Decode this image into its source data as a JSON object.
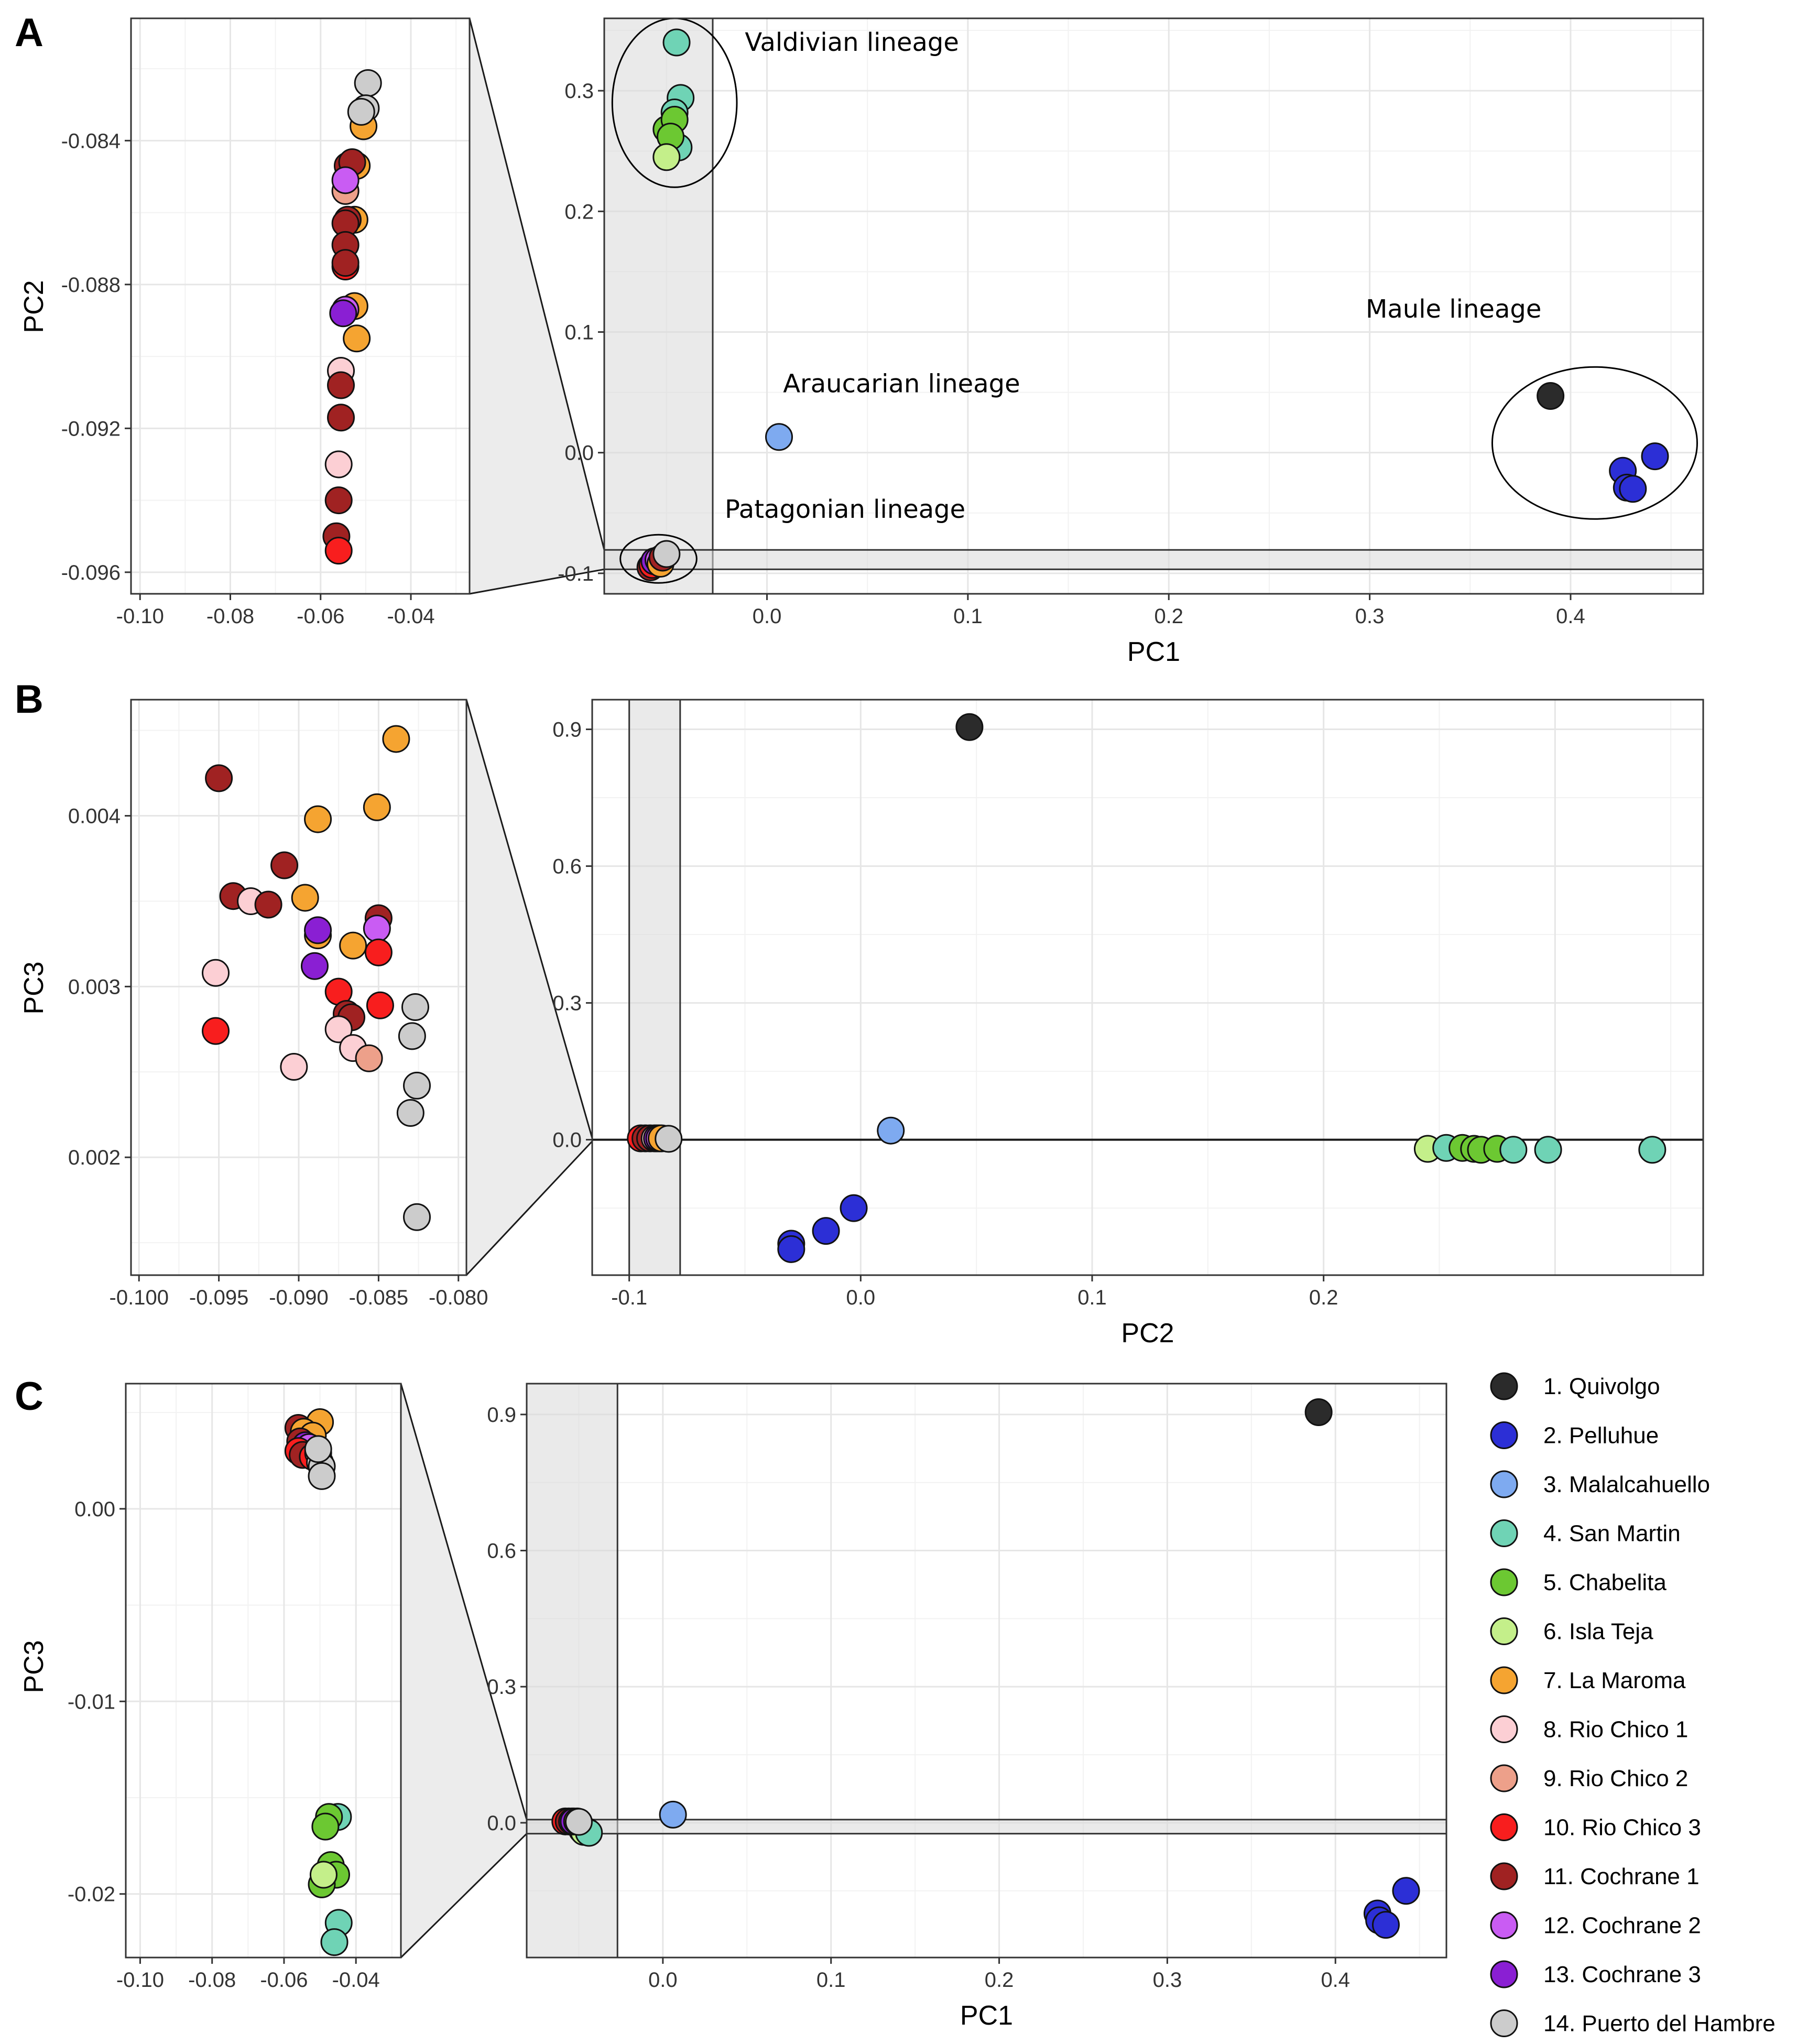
{
  "panel_letters": [
    "A",
    "B",
    "C"
  ],
  "legend": {
    "items": [
      {
        "id": 1,
        "label": "1. Quivolgo",
        "color": "#2b2b2b"
      },
      {
        "id": 2,
        "label": "2. Pelluhue",
        "color": "#2c2fd6"
      },
      {
        "id": 3,
        "label": "3. Malalcahuello",
        "color": "#7eaaf0"
      },
      {
        "id": 4,
        "label": "4. San Martin",
        "color": "#6fd3b5"
      },
      {
        "id": 5,
        "label": "5. Chabelita",
        "color": "#6cc832"
      },
      {
        "id": 6,
        "label": "6. Isla Teja",
        "color": "#c4ef8a"
      },
      {
        "id": 7,
        "label": "7. La Maroma",
        "color": "#f5a431"
      },
      {
        "id": 8,
        "label": "8. Rio Chico 1",
        "color": "#fccfd4"
      },
      {
        "id": 9,
        "label": "9. Rio Chico 2",
        "color": "#eda08a"
      },
      {
        "id": 10,
        "label": "10. Rio Chico 3",
        "color": "#f81e1e"
      },
      {
        "id": 11,
        "label": "11. Cochrane 1",
        "color": "#a02222"
      },
      {
        "id": 12,
        "label": "12. Cochrane 2",
        "color": "#c95cf3"
      },
      {
        "id": 13,
        "label": "13. Cochrane 3",
        "color": "#8a1fd3"
      },
      {
        "id": 14,
        "label": "14. Puerto del Hambre",
        "color": "#cccccc"
      }
    ]
  },
  "chart_data": [
    {
      "id": "A-zoom",
      "type": "scatter",
      "panel": "A",
      "xlabel": "",
      "ylabel": "PC2",
      "xlim": [
        -0.102,
        -0.027
      ],
      "ylim": [
        -0.0966,
        -0.0806
      ],
      "xticks": [
        -0.1,
        -0.08,
        -0.06,
        -0.04
      ],
      "xtick_labels": [
        "-0.10",
        "-0.08",
        "-0.06",
        "-0.04"
      ],
      "yticks": [
        -0.096,
        -0.092,
        -0.088,
        -0.084
      ],
      "ytick_labels": [
        "-0.096",
        "-0.092",
        "-0.088",
        "-0.084"
      ],
      "minor_x": [
        -0.09,
        -0.07,
        -0.05,
        -0.03
      ],
      "minor_y": [
        -0.094,
        -0.09,
        -0.086,
        -0.082
      ],
      "points": [
        [
          -0.0495,
          -0.0824,
          14
        ],
        [
          -0.05,
          -0.0831,
          14
        ],
        [
          -0.0505,
          -0.0836,
          7
        ],
        [
          -0.051,
          -0.0832,
          14
        ],
        [
          -0.054,
          -0.0847,
          11
        ],
        [
          -0.052,
          -0.0847,
          7
        ],
        [
          -0.053,
          -0.0846,
          11
        ],
        [
          -0.0545,
          -0.0854,
          9
        ],
        [
          -0.0545,
          -0.0851,
          12
        ],
        [
          -0.0525,
          -0.0862,
          7
        ],
        [
          -0.054,
          -0.0862,
          11
        ],
        [
          -0.0545,
          -0.0863,
          11
        ],
        [
          -0.0545,
          -0.0869,
          11
        ],
        [
          -0.0545,
          -0.0875,
          10
        ],
        [
          -0.0545,
          -0.0874,
          11
        ],
        [
          -0.0525,
          -0.0886,
          7
        ],
        [
          -0.0545,
          -0.0887,
          12
        ],
        [
          -0.055,
          -0.0888,
          13
        ],
        [
          -0.052,
          -0.0895,
          7
        ],
        [
          -0.0555,
          -0.0904,
          8
        ],
        [
          -0.0555,
          -0.0908,
          11
        ],
        [
          -0.0555,
          -0.0917,
          11
        ],
        [
          -0.056,
          -0.093,
          8
        ],
        [
          -0.056,
          -0.094,
          11
        ],
        [
          -0.0565,
          -0.095,
          11
        ],
        [
          -0.056,
          -0.0954,
          10
        ]
      ]
    },
    {
      "id": "A-main",
      "type": "scatter",
      "panel": "A",
      "xlabel": "PC1",
      "ylabel": "",
      "xlim": [
        -0.081,
        0.466
      ],
      "ylim": [
        -0.117,
        0.36
      ],
      "xticks": [
        0.0,
        0.1,
        0.2,
        0.3,
        0.4
      ],
      "xtick_labels": [
        "0.0",
        "0.1",
        "0.2",
        "0.3",
        "0.4"
      ],
      "yticks": [
        -0.1,
        0.0,
        0.1,
        0.2,
        0.3
      ],
      "ytick_labels": [
        "-0.1",
        "0.0",
        "0.1",
        "0.2",
        "0.3"
      ],
      "minor_x": [
        -0.05,
        0.05,
        0.15,
        0.25,
        0.35,
        0.45
      ],
      "minor_y": [
        -0.05,
        0.05,
        0.15,
        0.25,
        0.35
      ],
      "points": [
        [
          0.39,
          0.047,
          1
        ],
        [
          0.426,
          -0.015,
          2
        ],
        [
          0.428,
          -0.029,
          2
        ],
        [
          0.431,
          -0.03,
          2
        ],
        [
          0.442,
          -0.003,
          2
        ],
        [
          0.006,
          0.013,
          3
        ],
        [
          -0.045,
          0.34,
          4
        ],
        [
          -0.043,
          0.294,
          4
        ],
        [
          -0.046,
          0.282,
          4
        ],
        [
          -0.044,
          0.253,
          4
        ],
        [
          -0.05,
          0.268,
          5
        ],
        [
          -0.046,
          0.276,
          5
        ],
        [
          -0.048,
          0.262,
          5
        ],
        [
          -0.05,
          0.245,
          6
        ],
        [
          -0.058,
          -0.095,
          11
        ],
        [
          -0.057,
          -0.093,
          10
        ],
        [
          -0.056,
          -0.09,
          13
        ],
        [
          -0.054,
          -0.089,
          12
        ],
        [
          -0.053,
          -0.092,
          7
        ],
        [
          -0.052,
          -0.087,
          11
        ],
        [
          -0.05,
          -0.084,
          14
        ]
      ],
      "annotations": [
        {
          "text": "Valdivian lineage",
          "x": -0.011,
          "y": 0.333
        },
        {
          "text": "Maule lineage",
          "x": 0.298,
          "y": 0.112
        },
        {
          "text": "Araucarian lineage",
          "x": 0.008,
          "y": 0.05
        },
        {
          "text": "Patagonian lineage",
          "x": -0.021,
          "y": -0.054
        }
      ]
    },
    {
      "id": "B-zoom",
      "type": "scatter",
      "panel": "B",
      "xlabel": "",
      "ylabel": "PC3",
      "xlim": [
        -0.1005,
        -0.0795
      ],
      "ylim": [
        0.00131,
        0.00468
      ],
      "xticks": [
        -0.1,
        -0.095,
        -0.09,
        -0.085,
        -0.08
      ],
      "xtick_labels": [
        "-0.100",
        "-0.095",
        "-0.090",
        "-0.085",
        "-0.080"
      ],
      "yticks": [
        0.002,
        0.003,
        0.004
      ],
      "ytick_labels": [
        "0.002",
        "0.003",
        "0.004"
      ],
      "minor_x": [
        -0.0975,
        -0.0925,
        -0.0875,
        -0.0825
      ],
      "minor_y": [
        0.0015,
        0.0025,
        0.0035,
        0.0045
      ],
      "points": [
        [
          -0.0839,
          0.00445,
          7
        ],
        [
          -0.095,
          0.00422,
          11
        ],
        [
          -0.0851,
          0.00405,
          7
        ],
        [
          -0.0888,
          0.00398,
          7
        ],
        [
          -0.0909,
          0.00371,
          11
        ],
        [
          -0.0941,
          0.00353,
          11
        ],
        [
          -0.093,
          0.0035,
          8
        ],
        [
          -0.0919,
          0.00348,
          11
        ],
        [
          -0.0896,
          0.00352,
          7
        ],
        [
          -0.085,
          0.0034,
          11
        ],
        [
          -0.0888,
          0.0033,
          7
        ],
        [
          -0.0888,
          0.00333,
          13
        ],
        [
          -0.0851,
          0.00334,
          12
        ],
        [
          -0.0866,
          0.00324,
          7
        ],
        [
          -0.085,
          0.0032,
          10
        ],
        [
          -0.089,
          0.00312,
          13
        ],
        [
          -0.0952,
          0.00308,
          8
        ],
        [
          -0.0875,
          0.00297,
          10
        ],
        [
          -0.0849,
          0.00289,
          10
        ],
        [
          -0.0827,
          0.00288,
          14
        ],
        [
          -0.087,
          0.00284,
          11
        ],
        [
          -0.0867,
          0.00282,
          11
        ],
        [
          -0.0952,
          0.00274,
          10
        ],
        [
          -0.0875,
          0.00275,
          8
        ],
        [
          -0.0866,
          0.00264,
          8
        ],
        [
          -0.0829,
          0.00271,
          14
        ],
        [
          -0.0856,
          0.00258,
          9
        ],
        [
          -0.0903,
          0.00253,
          8
        ],
        [
          -0.0826,
          0.00242,
          14
        ],
        [
          -0.083,
          0.00226,
          14
        ],
        [
          -0.0826,
          0.00165,
          14
        ]
      ]
    },
    {
      "id": "B-main",
      "type": "scatter",
      "panel": "B",
      "xlabel": "PC2",
      "ylabel": "",
      "xlim": [
        -0.116,
        0.364
      ],
      "ylim": [
        -0.297,
        0.965
      ],
      "xticks": [
        -0.1,
        0.0,
        0.1,
        0.2
      ],
      "xtick_labels": [
        "-0.1",
        "0.0",
        "0.1",
        "0.2"
      ],
      "grid_x_extra": [
        0.3
      ],
      "yticks": [
        0.0,
        0.3,
        0.6,
        0.9
      ],
      "ytick_labels": [
        "0.0",
        "0.3",
        "0.6",
        "0.9"
      ],
      "minor_x": [
        -0.05,
        0.05,
        0.15,
        0.25,
        0.35
      ],
      "minor_y": [
        -0.15,
        0.15,
        0.45,
        0.75
      ],
      "points": [
        [
          0.047,
          0.905,
          1
        ],
        [
          0.013,
          0.02,
          3
        ],
        [
          -0.003,
          -0.15,
          2
        ],
        [
          -0.015,
          -0.2,
          2
        ],
        [
          -0.03,
          -0.228,
          2
        ],
        [
          -0.03,
          -0.24,
          2
        ],
        [
          0.245,
          -0.02,
          6
        ],
        [
          0.253,
          -0.018,
          4
        ],
        [
          0.26,
          -0.018,
          5
        ],
        [
          0.265,
          -0.02,
          5
        ],
        [
          0.268,
          -0.022,
          5
        ],
        [
          0.275,
          -0.02,
          5
        ],
        [
          0.282,
          -0.022,
          4
        ],
        [
          0.297,
          -0.022,
          4
        ],
        [
          0.342,
          -0.022,
          4
        ],
        [
          -0.095,
          0.003,
          10
        ],
        [
          -0.093,
          0.003,
          11
        ],
        [
          -0.091,
          0.003,
          11
        ],
        [
          -0.089,
          0.003,
          8
        ],
        [
          -0.088,
          0.003,
          13
        ],
        [
          -0.087,
          0.003,
          12
        ],
        [
          -0.086,
          0.003,
          7
        ],
        [
          -0.083,
          0.002,
          14
        ]
      ]
    },
    {
      "id": "C-zoom",
      "type": "scatter",
      "panel": "C",
      "xlabel": "",
      "ylabel": "PC3",
      "xlim": [
        -0.104,
        -0.0275
      ],
      "ylim": [
        -0.0233,
        0.0065
      ],
      "xticks": [
        -0.1,
        -0.08,
        -0.06,
        -0.04
      ],
      "xtick_labels": [
        "-0.10",
        "-0.08",
        "-0.06",
        "-0.04"
      ],
      "yticks": [
        -0.02,
        -0.01,
        0.0
      ],
      "ytick_labels": [
        "-0.02",
        "-0.01",
        "0.00"
      ],
      "minor_x": [
        -0.09,
        -0.07,
        -0.05,
        -0.03
      ],
      "minor_y": [
        -0.015,
        -0.005,
        0.005
      ],
      "points": [
        [
          -0.05,
          0.0045,
          7
        ],
        [
          -0.056,
          0.0042,
          11
        ],
        [
          -0.0545,
          0.004,
          7
        ],
        [
          -0.052,
          0.0038,
          7
        ],
        [
          -0.0555,
          0.0035,
          11
        ],
        [
          -0.054,
          0.0033,
          13
        ],
        [
          -0.053,
          0.0032,
          12
        ],
        [
          -0.056,
          0.003,
          10
        ],
        [
          -0.0548,
          0.0028,
          11
        ],
        [
          -0.052,
          0.0027,
          10
        ],
        [
          -0.0505,
          0.0029,
          14
        ],
        [
          -0.05,
          0.0024,
          14
        ],
        [
          -0.0495,
          0.0022,
          14
        ],
        [
          -0.0495,
          0.0017,
          14
        ],
        [
          -0.0505,
          0.0031,
          14
        ],
        [
          -0.045,
          -0.016,
          4
        ],
        [
          -0.0475,
          -0.016,
          5
        ],
        [
          -0.0485,
          -0.0165,
          5
        ],
        [
          -0.047,
          -0.0185,
          5
        ],
        [
          -0.0455,
          -0.019,
          5
        ],
        [
          -0.0495,
          -0.0195,
          5
        ],
        [
          -0.049,
          -0.019,
          6
        ],
        [
          -0.0448,
          -0.0215,
          4
        ],
        [
          -0.046,
          -0.0225,
          4
        ]
      ]
    },
    {
      "id": "C-main",
      "type": "scatter",
      "panel": "C",
      "xlabel": "PC1",
      "ylabel": "",
      "xlim": [
        -0.081,
        0.466
      ],
      "ylim": [
        -0.297,
        0.968
      ],
      "xticks": [
        0.0,
        0.1,
        0.2,
        0.3,
        0.4
      ],
      "xtick_labels": [
        "0.0",
        "0.1",
        "0.2",
        "0.3",
        "0.4"
      ],
      "yticks": [
        0.0,
        0.3,
        0.6,
        0.9
      ],
      "ytick_labels": [
        "0.0",
        "0.3",
        "0.6",
        "0.9"
      ],
      "minor_x": [
        -0.05,
        0.05,
        0.15,
        0.25,
        0.35,
        0.45
      ],
      "minor_y": [
        -0.15,
        0.15,
        0.45,
        0.75
      ],
      "points": [
        [
          0.39,
          0.905,
          1
        ],
        [
          0.006,
          0.018,
          3
        ],
        [
          0.442,
          -0.15,
          2
        ],
        [
          0.425,
          -0.2,
          2
        ],
        [
          0.426,
          -0.215,
          2
        ],
        [
          0.43,
          -0.225,
          2
        ],
        [
          -0.048,
          -0.016,
          5
        ],
        [
          -0.045,
          -0.019,
          5
        ],
        [
          -0.047,
          -0.02,
          6
        ],
        [
          -0.044,
          -0.022,
          4
        ],
        [
          -0.058,
          0.003,
          10
        ],
        [
          -0.056,
          0.003,
          11
        ],
        [
          -0.054,
          0.003,
          12
        ],
        [
          -0.053,
          0.003,
          13
        ],
        [
          -0.051,
          0.003,
          7
        ],
        [
          -0.05,
          0.002,
          14
        ]
      ]
    }
  ]
}
